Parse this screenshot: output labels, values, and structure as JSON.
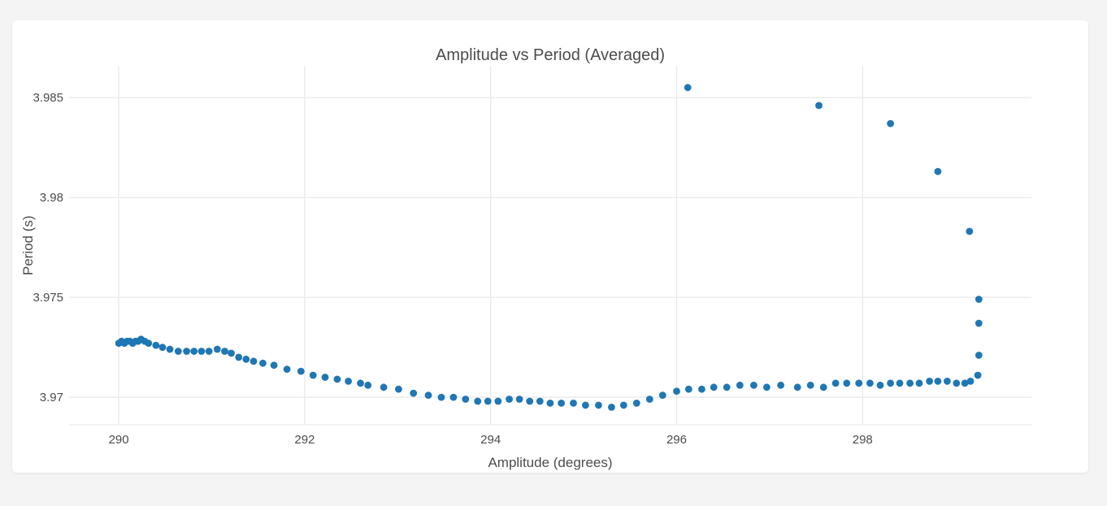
{
  "page": {
    "background_color": "#f4f4f5",
    "card_background_color": "#ffffff"
  },
  "chart_data": {
    "type": "scatter",
    "title": "Amplitude vs Period (Averaged)",
    "xlabel": "Amplitude (degrees)",
    "ylabel": "Period (s)",
    "xlim": [
      289.466,
      299.816
    ],
    "ylim": [
      3.96862,
      3.98659
    ],
    "x_ticks": [
      290,
      292,
      294,
      296,
      298
    ],
    "x_tick_labels": [
      "290",
      "292",
      "294",
      "296",
      "298"
    ],
    "y_ticks": [
      3.97,
      3.975,
      3.98,
      3.985
    ],
    "y_tick_labels": [
      "3.97",
      "3.975",
      "3.98",
      "3.985"
    ],
    "grid": true,
    "legend_visible": false,
    "marker_color": "#1f77b4",
    "marker_radius": 4.4,
    "grid_color": "#e9e9e9",
    "axis_line_color": "#ececec",
    "text_color": "#4c4c4c",
    "series": [
      {
        "name": "averaged-period",
        "points": [
          [
            290.0,
            3.9727
          ],
          [
            290.03,
            3.9728
          ],
          [
            290.06,
            3.9727
          ],
          [
            290.09,
            3.9728
          ],
          [
            290.12,
            3.9728
          ],
          [
            290.15,
            3.9727
          ],
          [
            290.18,
            3.9728
          ],
          [
            290.21,
            3.9728
          ],
          [
            290.24,
            3.9729
          ],
          [
            290.28,
            3.9728
          ],
          [
            290.32,
            3.9727
          ],
          [
            290.4,
            3.9726
          ],
          [
            290.47,
            3.9725
          ],
          [
            290.55,
            3.9724
          ],
          [
            290.64,
            3.9723
          ],
          [
            290.73,
            3.9723
          ],
          [
            290.81,
            3.9723
          ],
          [
            290.89,
            3.9723
          ],
          [
            290.97,
            3.9723
          ],
          [
            291.06,
            3.9724
          ],
          [
            291.14,
            3.9723
          ],
          [
            291.21,
            3.9722
          ],
          [
            291.29,
            3.972
          ],
          [
            291.37,
            3.9719
          ],
          [
            291.45,
            3.9718
          ],
          [
            291.55,
            3.9717
          ],
          [
            291.67,
            3.9716
          ],
          [
            291.81,
            3.9714
          ],
          [
            291.96,
            3.9713
          ],
          [
            292.09,
            3.9711
          ],
          [
            292.22,
            3.971
          ],
          [
            292.35,
            3.9709
          ],
          [
            292.47,
            3.9708
          ],
          [
            292.6,
            3.9707
          ],
          [
            292.68,
            3.9706
          ],
          [
            292.85,
            3.9705
          ],
          [
            293.01,
            3.9704
          ],
          [
            293.17,
            3.9702
          ],
          [
            293.33,
            3.9701
          ],
          [
            293.47,
            3.97
          ],
          [
            293.6,
            3.97
          ],
          [
            293.73,
            3.9699
          ],
          [
            293.86,
            3.9698
          ],
          [
            293.97,
            3.9698
          ],
          [
            294.08,
            3.9698
          ],
          [
            294.2,
            3.9699
          ],
          [
            294.31,
            3.9699
          ],
          [
            294.42,
            3.9698
          ],
          [
            294.53,
            3.9698
          ],
          [
            294.64,
            3.9697
          ],
          [
            294.76,
            3.9697
          ],
          [
            294.89,
            3.9697
          ],
          [
            295.02,
            3.9696
          ],
          [
            295.16,
            3.9696
          ],
          [
            295.3,
            3.9695
          ],
          [
            295.43,
            3.9696
          ],
          [
            295.57,
            3.9697
          ],
          [
            295.71,
            3.9699
          ],
          [
            295.85,
            3.9701
          ],
          [
            296.0,
            3.9703
          ],
          [
            296.13,
            3.9704
          ],
          [
            296.27,
            3.9704
          ],
          [
            296.4,
            3.9705
          ],
          [
            296.54,
            3.9705
          ],
          [
            296.68,
            3.9706
          ],
          [
            296.83,
            3.9706
          ],
          [
            296.97,
            3.9705
          ],
          [
            297.12,
            3.9706
          ],
          [
            297.3,
            3.9705
          ],
          [
            297.44,
            3.9706
          ],
          [
            297.58,
            3.9705
          ],
          [
            297.71,
            3.9707
          ],
          [
            297.83,
            3.9707
          ],
          [
            297.96,
            3.9707
          ],
          [
            298.08,
            3.9707
          ],
          [
            298.19,
            3.9706
          ],
          [
            298.3,
            3.9707
          ],
          [
            298.4,
            3.9707
          ],
          [
            298.51,
            3.9707
          ],
          [
            298.61,
            3.9707
          ],
          [
            298.72,
            3.9708
          ],
          [
            298.81,
            3.9708
          ],
          [
            298.91,
            3.9708
          ],
          [
            299.01,
            3.9707
          ],
          [
            299.1,
            3.9707
          ],
          [
            299.16,
            3.9708
          ],
          [
            299.24,
            3.9711
          ],
          [
            299.25,
            3.9721
          ],
          [
            299.25,
            3.9737
          ],
          [
            299.25,
            3.9749
          ],
          [
            299.15,
            3.9783
          ],
          [
            298.81,
            3.9813
          ],
          [
            298.3,
            3.9837
          ],
          [
            297.53,
            3.9846
          ],
          [
            296.12,
            3.9855
          ]
        ]
      }
    ]
  }
}
